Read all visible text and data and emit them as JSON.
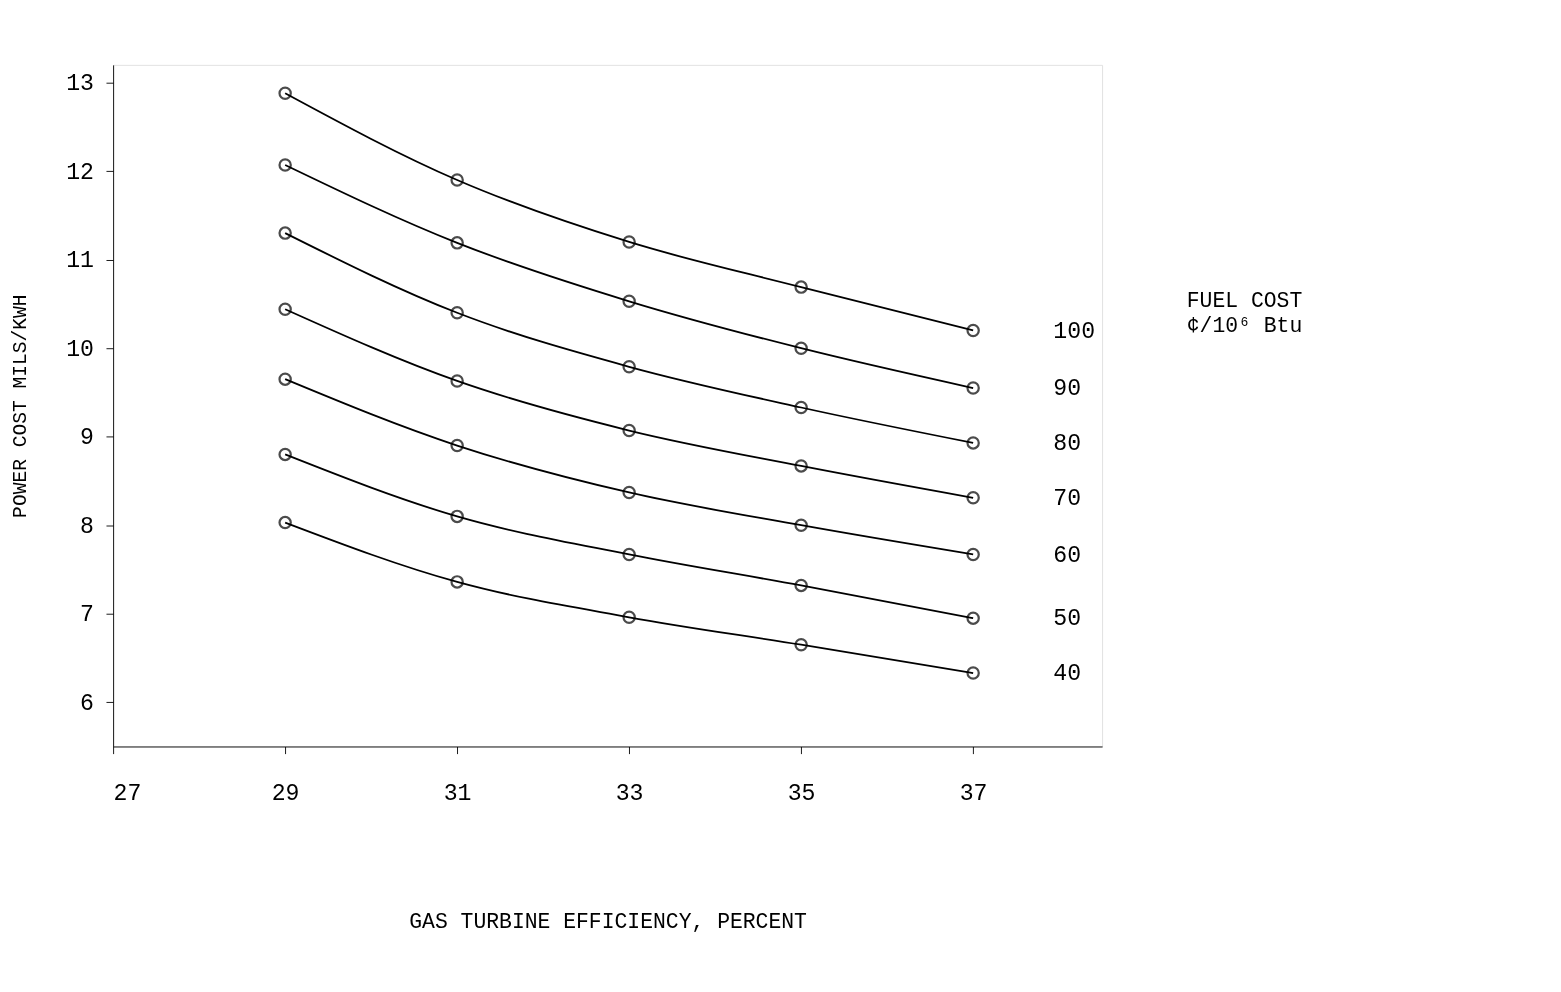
{
  "chart_data": {
    "type": "line",
    "xlabel": "GAS TURBINE EFFICIENCY, PERCENT",
    "ylabel": "POWER COST MILS/KWH",
    "legend_title": "FUEL COST\n¢/10⁶ Btu",
    "x": [
      29,
      31,
      33,
      35,
      37
    ],
    "series": [
      {
        "name": "100",
        "color": "#000000",
        "values": [
          12.88,
          11.9,
          11.2,
          10.69,
          10.2
        ]
      },
      {
        "name": "90",
        "color": "#000000",
        "values": [
          12.07,
          11.19,
          10.53,
          10.0,
          9.55
        ]
      },
      {
        "name": "80",
        "color": "#000000",
        "values": [
          11.3,
          10.4,
          9.79,
          9.33,
          8.93
        ]
      },
      {
        "name": "70",
        "color": "#000000",
        "values": [
          10.44,
          9.63,
          9.07,
          8.67,
          8.31
        ]
      },
      {
        "name": "60",
        "color": "#000000",
        "values": [
          9.65,
          8.9,
          8.37,
          8.0,
          7.67
        ]
      },
      {
        "name": "50",
        "color": "#000000",
        "values": [
          8.8,
          8.1,
          7.67,
          7.32,
          6.95
        ]
      },
      {
        "name": "40",
        "color": "#000000",
        "values": [
          8.03,
          7.36,
          6.96,
          6.65,
          6.33
        ]
      }
    ],
    "xlim": [
      27,
      38.5
    ],
    "xticks": [
      27,
      29,
      31,
      33,
      35,
      37
    ],
    "ylim": [
      5.5,
      13.2
    ],
    "yticks": [
      6,
      7,
      8,
      9,
      10,
      11,
      12,
      13
    ],
    "grid": false,
    "legend": "right",
    "marker": "circle",
    "line_style": "solid"
  }
}
